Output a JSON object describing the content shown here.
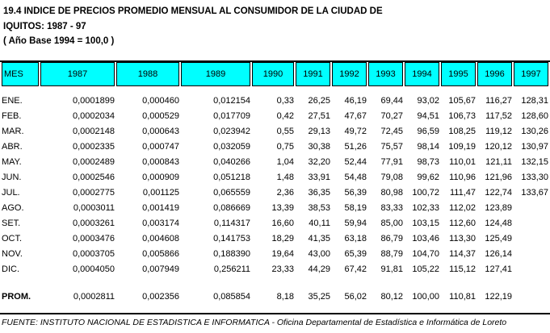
{
  "title": {
    "line1": "19.4 INDICE DE PRECIOS PROMEDIO MENSUAL AL CONSUMIDOR DE LA CIUDAD DE",
    "line2": "IQUITOS: 1987 - 97",
    "line3": "( Año Base 1994 = 100,0 )"
  },
  "colors": {
    "header_bg": "#00FFFF",
    "border": "#000000",
    "text": "#000000",
    "background": "#FFFFFF"
  },
  "table": {
    "columns": [
      "MES",
      "1987",
      "1988",
      "1989",
      "1990",
      "1991",
      "1992",
      "1993",
      "1994",
      "1995",
      "1996",
      "1997"
    ],
    "rows": [
      {
        "mes": "ENE.",
        "values": [
          "0,0001899",
          "0,000460",
          "0,012154",
          "0,33",
          "26,25",
          "46,19",
          "69,44",
          "93,02",
          "105,67",
          "116,27",
          "128,31"
        ]
      },
      {
        "mes": "FEB.",
        "values": [
          "0,0002034",
          "0,000529",
          "0,017709",
          "0,42",
          "27,51",
          "47,67",
          "70,27",
          "94,51",
          "106,73",
          "117,52",
          "128,60"
        ]
      },
      {
        "mes": "MAR.",
        "values": [
          "0,0002148",
          "0,000643",
          "0,023942",
          "0,55",
          "29,13",
          "49,72",
          "72,45",
          "96,59",
          "108,25",
          "119,12",
          "130,26"
        ]
      },
      {
        "mes": "ABR.",
        "values": [
          "0,0002335",
          "0,000747",
          "0,032059",
          "0,75",
          "30,38",
          "51,26",
          "75,57",
          "98,14",
          "109,19",
          "120,12",
          "130,97"
        ]
      },
      {
        "mes": "MAY.",
        "values": [
          "0,0002489",
          "0,000843",
          "0,040266",
          "1,04",
          "32,20",
          "52,44",
          "77,91",
          "98,73",
          "110,01",
          "121,11",
          "132,15"
        ]
      },
      {
        "mes": "JUN.",
        "values": [
          "0,0002546",
          "0,000909",
          "0,051218",
          "1,48",
          "33,91",
          "54,48",
          "79,08",
          "99,62",
          "110,96",
          "121,96",
          "133,30"
        ]
      },
      {
        "mes": "JUL.",
        "values": [
          "0,0002775",
          "0,001125",
          "0,065559",
          "2,36",
          "36,35",
          "56,39",
          "80,98",
          "100,72",
          "111,47",
          "122,74",
          "133,67"
        ]
      },
      {
        "mes": "AGO.",
        "values": [
          "0,0003011",
          "0,001419",
          "0,086669",
          "13,39",
          "38,53",
          "58,19",
          "83,33",
          "102,33",
          "112,02",
          "123,89",
          ""
        ]
      },
      {
        "mes": "SET.",
        "values": [
          "0,0003261",
          "0,003174",
          "0,114317",
          "16,60",
          "40,11",
          "59,94",
          "85,00",
          "103,15",
          "112,60",
          "124,48",
          ""
        ]
      },
      {
        "mes": "OCT.",
        "values": [
          "0,0003476",
          "0,004608",
          "0,141753",
          "18,29",
          "41,35",
          "63,18",
          "86,79",
          "103,46",
          "113,30",
          "125,49",
          ""
        ]
      },
      {
        "mes": "NOV.",
        "values": [
          "0,0003705",
          "0,005866",
          "0,188390",
          "19,64",
          "43,00",
          "65,39",
          "88,79",
          "104,70",
          "114,37",
          "126,14",
          ""
        ]
      },
      {
        "mes": "DIC.",
        "values": [
          "0,0004050",
          "0,007949",
          "0,256211",
          "23,33",
          "44,29",
          "67,42",
          "91,81",
          "105,22",
          "115,12",
          "127,41",
          ""
        ]
      }
    ],
    "summary_row": {
      "mes": "PROM.",
      "values": [
        "0,0002811",
        "0,002356",
        "0,085854",
        "8,18",
        "35,25",
        "56,02",
        "80,12",
        "100,00",
        "110,81",
        "122,19",
        ""
      ]
    }
  },
  "footer": {
    "source": "FUENTE: INSTITUTO NACIONAL DE ESTADISTICA E INFORMATICA - Oficina Departamental de Estadística e Informática de Loreto"
  }
}
